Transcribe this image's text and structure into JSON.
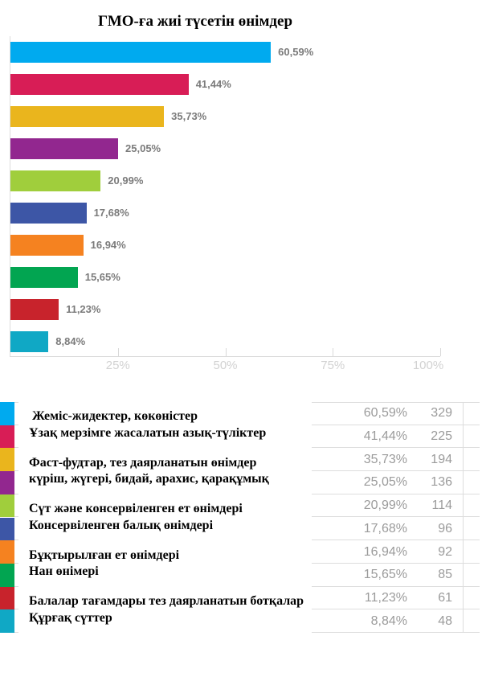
{
  "chart_data": {
    "type": "bar",
    "orientation": "horizontal",
    "title": "ГМО-ға жиі түсетін өнімдер",
    "xlabel": "",
    "ylabel": "",
    "xlim": [
      0,
      100
    ],
    "grid": false,
    "legend_position": "bottom-table",
    "x_tick_values": [
      25,
      50,
      75,
      100
    ],
    "x_tick_labels": [
      "25%",
      "50%",
      "75%",
      "100%"
    ],
    "categories": [
      " Жеміс-жидектер, көкөністер",
      "Ұзақ мерзімге жасалатын азық-түліктер",
      "Фаст-фудтар, тез даярланатын өнімдер",
      "күріш, жүгері, бидай, арахис, қарақұмық",
      "Сүт және консервіленген ет өнімдері",
      "Консервіленген балық өнімдері",
      "Бұқтырылған ет өнімдері",
      "Нан өнімері",
      "Балалар тағамдары тез даярланатын ботқалар",
      "Құрғақ сүттер"
    ],
    "values": [
      60.59,
      41.44,
      35.73,
      25.05,
      20.99,
      17.68,
      16.94,
      15.65,
      11.23,
      8.84
    ],
    "counts": [
      329,
      225,
      194,
      136,
      114,
      96,
      92,
      85,
      61,
      48
    ],
    "rows": [
      {
        "label": " Жеміс-жидектер, көкөністер",
        "value": 60.59,
        "value_label": "60,59%",
        "count": "329",
        "color": "#00AAEF"
      },
      {
        "label": "Ұзақ мерзімге жасалатын азық-түліктер",
        "value": 41.44,
        "value_label": "41,44%",
        "count": "225",
        "color": "#D81D56"
      },
      {
        "label": "Фаст-фудтар, тез даярланатын өнімдер",
        "value": 35.73,
        "value_label": "35,73%",
        "count": "194",
        "color": "#EAB51D"
      },
      {
        "label": "күріш, жүгері, бидай, арахис, қарақұмық",
        "value": 25.05,
        "value_label": "25,05%",
        "count": "136",
        "color": "#92278F"
      },
      {
        "label": "Сүт және консервіленген ет өнімдері",
        "value": 20.99,
        "value_label": "20,99%",
        "count": "114",
        "color": "#A0CE3C"
      },
      {
        "label": "Консервіленген балық өнімдері",
        "value": 17.68,
        "value_label": "17,68%",
        "count": "96",
        "color": "#3D56A6"
      },
      {
        "label": "Бұқтырылған ет өнімдері",
        "value": 16.94,
        "value_label": "16,94%",
        "count": "92",
        "color": "#F58220"
      },
      {
        "label": "Нан өнімері",
        "value": 15.65,
        "value_label": "15,65%",
        "count": "85",
        "color": "#02A551"
      },
      {
        "label": "Балалар тағамдары тез даярланатын ботқалар",
        "value": 11.23,
        "value_label": "11,23%",
        "count": "61",
        "color": "#C8232C"
      },
      {
        "label": "Құрғақ сүттер",
        "value": 8.84,
        "value_label": "8,84%",
        "count": "48",
        "color": "#10A8C5"
      }
    ]
  },
  "palette": {
    "bar_value_label": "#7b7b7b",
    "table_text": "#9b9b9b",
    "axis_line": "#d9d9d9",
    "tick_label": "#d2d2d2",
    "separator": "#dddddd",
    "title_text": "#000000",
    "background": "#ffffff"
  }
}
